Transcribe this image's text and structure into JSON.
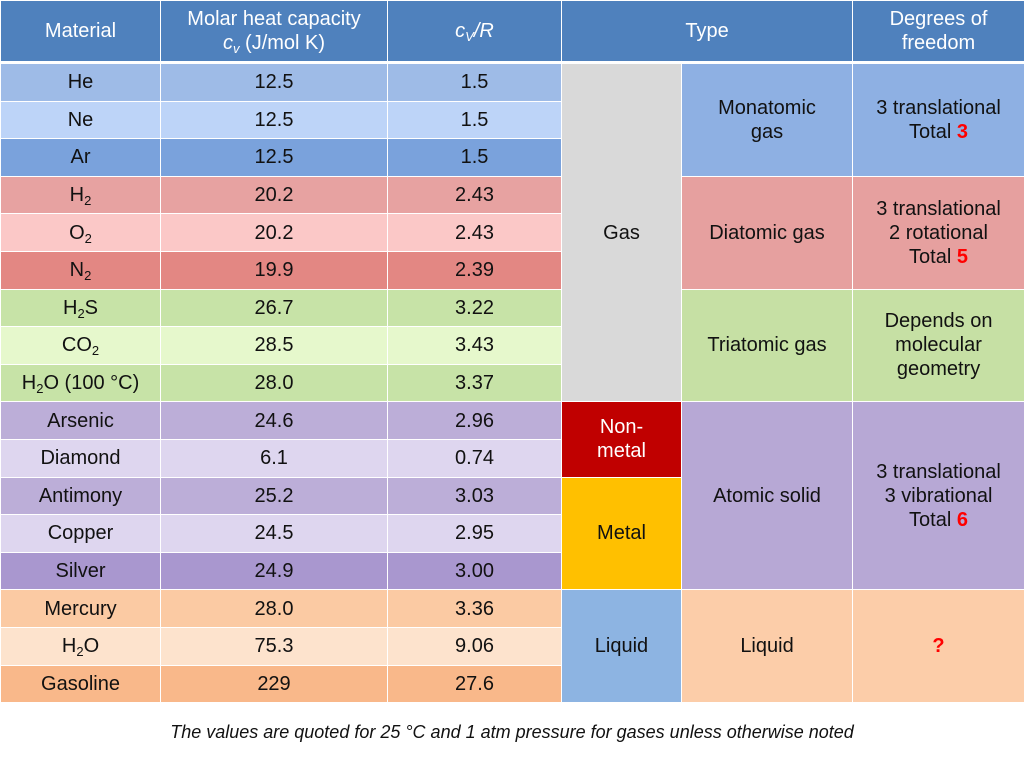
{
  "header": {
    "material": "Material",
    "molar_heat_line1": "Molar heat capacity",
    "molar_heat_symbol": "c",
    "molar_heat_sub": "v",
    "molar_heat_unit": "(J/mol K)",
    "cv_symbol": "c",
    "cv_sub": "V",
    "cv_over": "/R",
    "type": "Type",
    "dof_line1": "Degrees of",
    "dof_line2": "freedom"
  },
  "rows": [
    {
      "name": "He",
      "cv": "12.5",
      "ratio": "1.5"
    },
    {
      "name": "Ne",
      "cv": "12.5",
      "ratio": "1.5"
    },
    {
      "name": "Ar",
      "cv": "12.5",
      "ratio": "1.5"
    },
    {
      "name": "H",
      "sub": "2",
      "cv": "20.2",
      "ratio": "2.43"
    },
    {
      "name": "O",
      "sub": "2",
      "cv": "20.2",
      "ratio": "2.43"
    },
    {
      "name": "N",
      "sub": "2",
      "cv": "19.9",
      "ratio": "2.39"
    },
    {
      "name": "H",
      "sub": "2",
      "after": "S",
      "cv": "26.7",
      "ratio": "3.22"
    },
    {
      "name": "CO",
      "sub": "2",
      "cv": "28.5",
      "ratio": "3.43"
    },
    {
      "name": "H",
      "sub": "2",
      "after": "O (100 °C)",
      "cv": "28.0",
      "ratio": "3.37"
    },
    {
      "name": "Arsenic",
      "cv": "24.6",
      "ratio": "2.96"
    },
    {
      "name": "Diamond",
      "cv": "6.1",
      "ratio": "0.74"
    },
    {
      "name": "Antimony",
      "cv": "25.2",
      "ratio": "3.03"
    },
    {
      "name": "Copper",
      "cv": "24.5",
      "ratio": "2.95"
    },
    {
      "name": "Silver",
      "cv": "24.9",
      "ratio": "3.00"
    },
    {
      "name": "Mercury",
      "cv": "28.0",
      "ratio": "3.36"
    },
    {
      "name": "H",
      "sub": "2",
      "after": "O",
      "cv": "75.3",
      "ratio": "9.06"
    },
    {
      "name": "Gasoline",
      "cv": "229",
      "ratio": "27.6"
    }
  ],
  "state": {
    "gas": "Gas",
    "nonmetal_line1": "Non-",
    "nonmetal_line2": "metal",
    "metal": "Metal",
    "liquid": "Liquid"
  },
  "types": {
    "monatomic_line1": "Monatomic",
    "monatomic_line2": "gas",
    "diatomic": "Diatomic gas",
    "triatomic": "Triatomic gas",
    "atomic_solid": "Atomic solid",
    "liquid": "Liquid"
  },
  "dof": {
    "mono_line1": "3 translational",
    "mono_total_label": "Total",
    "mono_total": "3",
    "diat_line1": "3 translational",
    "diat_line2": "2 rotational",
    "diat_total_label": "Total",
    "diat_total": "5",
    "tri_line1": "Depends on",
    "tri_line2": "molecular",
    "tri_line3": "geometry",
    "solid_line1": "3 translational",
    "solid_line2": "3 vibrational",
    "solid_total_label": "Total",
    "solid_total": "6",
    "liquid": "?"
  },
  "footnote": "The values are quoted for 25 °C and 1 atm pressure for gases unless otherwise noted",
  "colors": {
    "header": "#4f81bd",
    "monatomic": "#9ebbe7",
    "diatomic": "#e7a2a1",
    "triatomic": "#c7e3a7",
    "solid": "#bcaed8",
    "liquid": "#fbcaa3",
    "gas_state": "#d9d9d9",
    "nonmetal": "#c00000",
    "metal": "#ffc000",
    "liquid_state": "#8db4e2",
    "total_highlight": "#ff0000"
  }
}
